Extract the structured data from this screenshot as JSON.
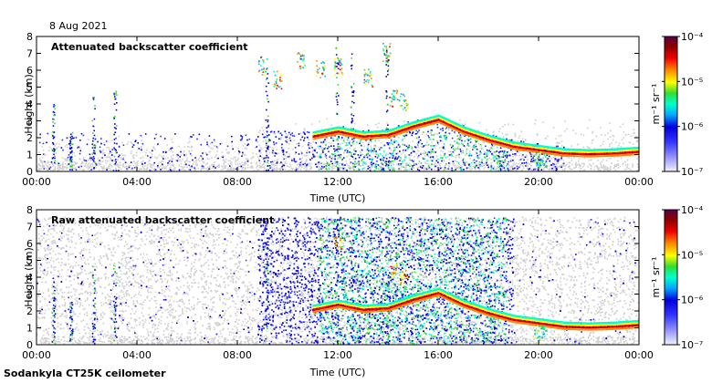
{
  "date_label": "8 Aug 2021",
  "footer": "Sodankyla CT25K ceilometer",
  "colors": {
    "background": "#ffffff",
    "plot_bg": "#ffffff",
    "noise_gray": "#cfcfcf",
    "scale": [
      "#f2f2ff",
      "#9999ff",
      "#3333ff",
      "#0000dd",
      "#00aaff",
      "#00ffcc",
      "#33dd33",
      "#ffff00",
      "#ff8800",
      "#ee0000",
      "#880000",
      "#5a004a"
    ]
  },
  "chart_data": [
    {
      "type": "heatmap",
      "title": "Attenuated backscatter coefficient",
      "xlabel": "Time (UTC)",
      "ylabel": "Height (km)",
      "xlim": [
        0,
        24
      ],
      "ylim": [
        0,
        8
      ],
      "x_ticks": [
        "00:00",
        "04:00",
        "08:00",
        "12:00",
        "16:00",
        "20:00",
        "00:00"
      ],
      "y_ticks": [
        "0",
        "1",
        "2",
        "3",
        "4",
        "5",
        "6",
        "7",
        "8"
      ],
      "colorbar": {
        "label": "m⁻¹ sr⁻¹",
        "ticks": [
          "10⁻⁷",
          "10⁻⁶",
          "10⁻⁵",
          "10⁻⁴"
        ],
        "log_range": [
          -7,
          -4
        ]
      },
      "layer": {
        "time_h": [
          11.0,
          12.0,
          13.0,
          14.0,
          15.0,
          16.0,
          17.0,
          18.0,
          19.0,
          20.0,
          21.0,
          22.0,
          23.0,
          24.0
        ],
        "height_km": [
          2.0,
          2.3,
          2.0,
          2.1,
          2.6,
          3.0,
          2.3,
          1.8,
          1.4,
          1.2,
          1.0,
          0.95,
          1.0,
          1.1
        ]
      }
    },
    {
      "type": "heatmap",
      "title": "Raw attenuated backscatter coefficient",
      "xlabel": "Time (UTC)",
      "ylabel": "Height (km)",
      "xlim": [
        0,
        24
      ],
      "ylim": [
        0,
        8
      ],
      "x_ticks": [
        "00:00",
        "04:00",
        "08:00",
        "12:00",
        "16:00",
        "20:00",
        "00:00"
      ],
      "y_ticks": [
        "0",
        "1",
        "2",
        "3",
        "4",
        "5",
        "6",
        "7",
        "8"
      ],
      "colorbar": {
        "label": "m⁻¹ sr⁻¹",
        "ticks": [
          "10⁻⁷",
          "10⁻⁶",
          "10⁻⁵",
          "10⁻⁴"
        ],
        "log_range": [
          -7,
          -4
        ]
      },
      "layer": {
        "time_h": [
          11.0,
          12.0,
          13.0,
          14.0,
          15.0,
          16.0,
          17.0,
          18.0,
          19.0,
          20.0,
          21.0,
          22.0,
          23.0,
          24.0
        ],
        "height_km": [
          2.0,
          2.3,
          2.0,
          2.1,
          2.6,
          3.0,
          2.3,
          1.8,
          1.4,
          1.2,
          1.0,
          0.95,
          1.0,
          1.1
        ]
      }
    }
  ]
}
